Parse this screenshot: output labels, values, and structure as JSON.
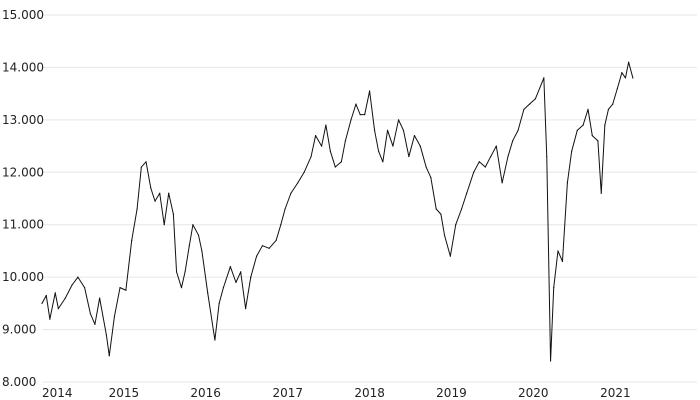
{
  "chart_data": {
    "type": "line",
    "title": "",
    "xlabel": "",
    "ylabel": "",
    "grid": true,
    "legend": "none",
    "ylim": [
      8000,
      15000
    ],
    "xlim": [
      "2014-01-01",
      "2021-12-31"
    ],
    "line_color": "#111111",
    "grid_color": "#e6e6e6",
    "y_ticks": [
      {
        "value": 8000,
        "label": "8.000"
      },
      {
        "value": 9000,
        "label": "9.000"
      },
      {
        "value": 10000,
        "label": "10.000"
      },
      {
        "value": 11000,
        "label": "11.000"
      },
      {
        "value": 12000,
        "label": "12.000"
      },
      {
        "value": 13000,
        "label": "13.000"
      },
      {
        "value": 14000,
        "label": "14.000"
      },
      {
        "value": 15000,
        "label": "15.000"
      }
    ],
    "x_ticks": [
      {
        "value": "2014-01-01",
        "label": "2014"
      },
      {
        "value": "2015-01-01",
        "label": "2015"
      },
      {
        "value": "2016-01-01",
        "label": "2016"
      },
      {
        "value": "2017-01-01",
        "label": "2017"
      },
      {
        "value": "2018-01-01",
        "label": "2018"
      },
      {
        "value": "2019-01-01",
        "label": "2019"
      },
      {
        "value": "2020-01-01",
        "label": "2020"
      },
      {
        "value": "2021-01-01",
        "label": "2021"
      }
    ],
    "series": [
      {
        "x": [
          "2014-01-01",
          "2014-01-20",
          "2014-02-05",
          "2014-03-01",
          "2014-03-15",
          "2014-04-15",
          "2014-05-15",
          "2014-06-10",
          "2014-07-10",
          "2014-08-05",
          "2014-08-25",
          "2014-09-15",
          "2014-10-15",
          "2014-10-28",
          "2014-11-20",
          "2014-12-15",
          "2015-01-10",
          "2015-02-05",
          "2015-03-01",
          "2015-03-20",
          "2015-04-10",
          "2015-05-01",
          "2015-05-20",
          "2015-06-10",
          "2015-06-30",
          "2015-07-20",
          "2015-08-10",
          "2015-08-24",
          "2015-09-15",
          "2015-10-01",
          "2015-10-20",
          "2015-11-05",
          "2015-11-30",
          "2015-12-15",
          "2016-01-10",
          "2016-02-11",
          "2016-03-01",
          "2016-03-20",
          "2016-04-20",
          "2016-05-15",
          "2016-06-05",
          "2016-06-27",
          "2016-07-20",
          "2016-08-15",
          "2016-09-10",
          "2016-10-10",
          "2016-11-10",
          "2016-12-01",
          "2016-12-20",
          "2017-01-15",
          "2017-02-15",
          "2017-03-15",
          "2017-04-15",
          "2017-05-05",
          "2017-06-01",
          "2017-06-20",
          "2017-07-10",
          "2017-08-01",
          "2017-08-28",
          "2017-09-15",
          "2017-10-10",
          "2017-11-01",
          "2017-11-20",
          "2017-12-10",
          "2018-01-01",
          "2018-01-23",
          "2018-02-10",
          "2018-03-01",
          "2018-03-22",
          "2018-04-15",
          "2018-05-10",
          "2018-06-01",
          "2018-06-25",
          "2018-07-20",
          "2018-08-15",
          "2018-09-10",
          "2018-10-01",
          "2018-10-25",
          "2018-11-15",
          "2018-12-01",
          "2018-12-27",
          "2019-01-20",
          "2019-02-15",
          "2019-03-10",
          "2019-04-10",
          "2019-05-05",
          "2019-06-01",
          "2019-06-25",
          "2019-07-20",
          "2019-08-15",
          "2019-09-10",
          "2019-10-01",
          "2019-10-25",
          "2019-11-20",
          "2019-12-15",
          "2020-01-10",
          "2020-02-17",
          "2020-03-01",
          "2020-03-18",
          "2020-04-01",
          "2020-04-20",
          "2020-05-10",
          "2020-06-01",
          "2020-06-20",
          "2020-07-15",
          "2020-08-10",
          "2020-09-01",
          "2020-09-20",
          "2020-10-15",
          "2020-10-30",
          "2020-11-15",
          "2020-12-01",
          "2020-12-20",
          "2021-01-10",
          "2021-01-30",
          "2021-02-15",
          "2021-03-01",
          "2021-03-20"
        ],
        "y": [
          9500,
          9650,
          9200,
          9700,
          9400,
          9600,
          9850,
          10000,
          9800,
          9300,
          9100,
          9600,
          8900,
          8500,
          9250,
          9800,
          9750,
          10700,
          11300,
          12100,
          12200,
          11700,
          11450,
          11600,
          11000,
          11600,
          11200,
          10100,
          9800,
          10100,
          10600,
          11000,
          10800,
          10500,
          9700,
          8800,
          9500,
          9800,
          10200,
          9900,
          10100,
          9400,
          10000,
          10400,
          10600,
          10550,
          10700,
          11000,
          11300,
          11600,
          11800,
          12000,
          12300,
          12700,
          12500,
          12900,
          12400,
          12100,
          12200,
          12600,
          13000,
          13300,
          13100,
          13100,
          13550,
          12800,
          12400,
          12200,
          12800,
          12500,
          13000,
          12800,
          12300,
          12700,
          12500,
          12100,
          11900,
          11300,
          11200,
          10800,
          10400,
          11000,
          11300,
          11600,
          12000,
          12200,
          12100,
          12300,
          12500,
          11800,
          12300,
          12600,
          12800,
          13200,
          13300,
          13400,
          13800,
          12300,
          8400,
          9800,
          10500,
          10300,
          11800,
          12400,
          12800,
          12900,
          13200,
          12700,
          12600,
          11600,
          12900,
          13200,
          13300,
          13600,
          13900,
          13800,
          14100,
          13800
        ]
      }
    ]
  }
}
